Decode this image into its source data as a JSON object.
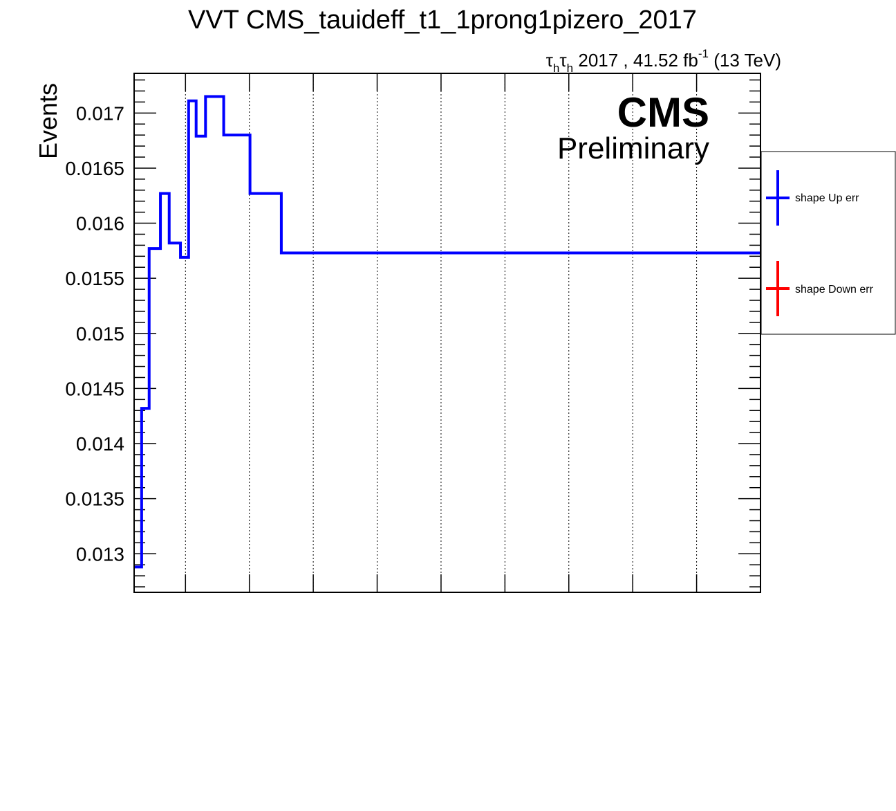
{
  "chart_data": {
    "type": "line",
    "title": "VVT CMS_tauideff_t1_1prong1pizero_2017",
    "lumi": {
      "prefix": "τ",
      "sub": "h",
      "prefix2": "τ",
      "sub2": "h",
      "main": " 2017 , 41.52 fb",
      "sup": "-1",
      "suffix": " (13 TeV)"
    },
    "ylabel": "Events",
    "xlabel": "",
    "cms_label": "CMS",
    "extra_label": "Preliminary",
    "ylim": [
      0.01265,
      0.01736
    ],
    "xlim": [
      0,
      1
    ],
    "y_ticks": [
      "0.013",
      "0.0135",
      "0.014",
      "0.0145",
      "0.015",
      "0.0155",
      "0.016",
      "0.0165",
      "0.017"
    ],
    "y_tick_values": [
      0.013,
      0.0135,
      0.014,
      0.0145,
      0.015,
      0.0155,
      0.016,
      0.0165,
      0.017
    ],
    "x_grid": [
      0.082,
      0.184,
      0.286,
      0.388,
      0.49,
      0.592,
      0.694,
      0.796,
      0.898
    ],
    "grid": "x-only dotted",
    "series": [
      {
        "name": "shape Up err",
        "color": "#0000ff",
        "edges": [
          0.0,
          0.012,
          0.024,
          0.042,
          0.056,
          0.074,
          0.087,
          0.099,
          0.114,
          0.143,
          0.185,
          0.235,
          1.0
        ],
        "values": [
          0.01288,
          0.01432,
          0.01577,
          0.01627,
          0.01582,
          0.01569,
          0.01711,
          0.01679,
          0.01715,
          0.0168,
          0.01627,
          0.01573
        ]
      },
      {
        "name": "shape Down err",
        "color": "#ff0000",
        "edges": [],
        "values": []
      }
    ],
    "legend_position": "right, outside plot"
  }
}
